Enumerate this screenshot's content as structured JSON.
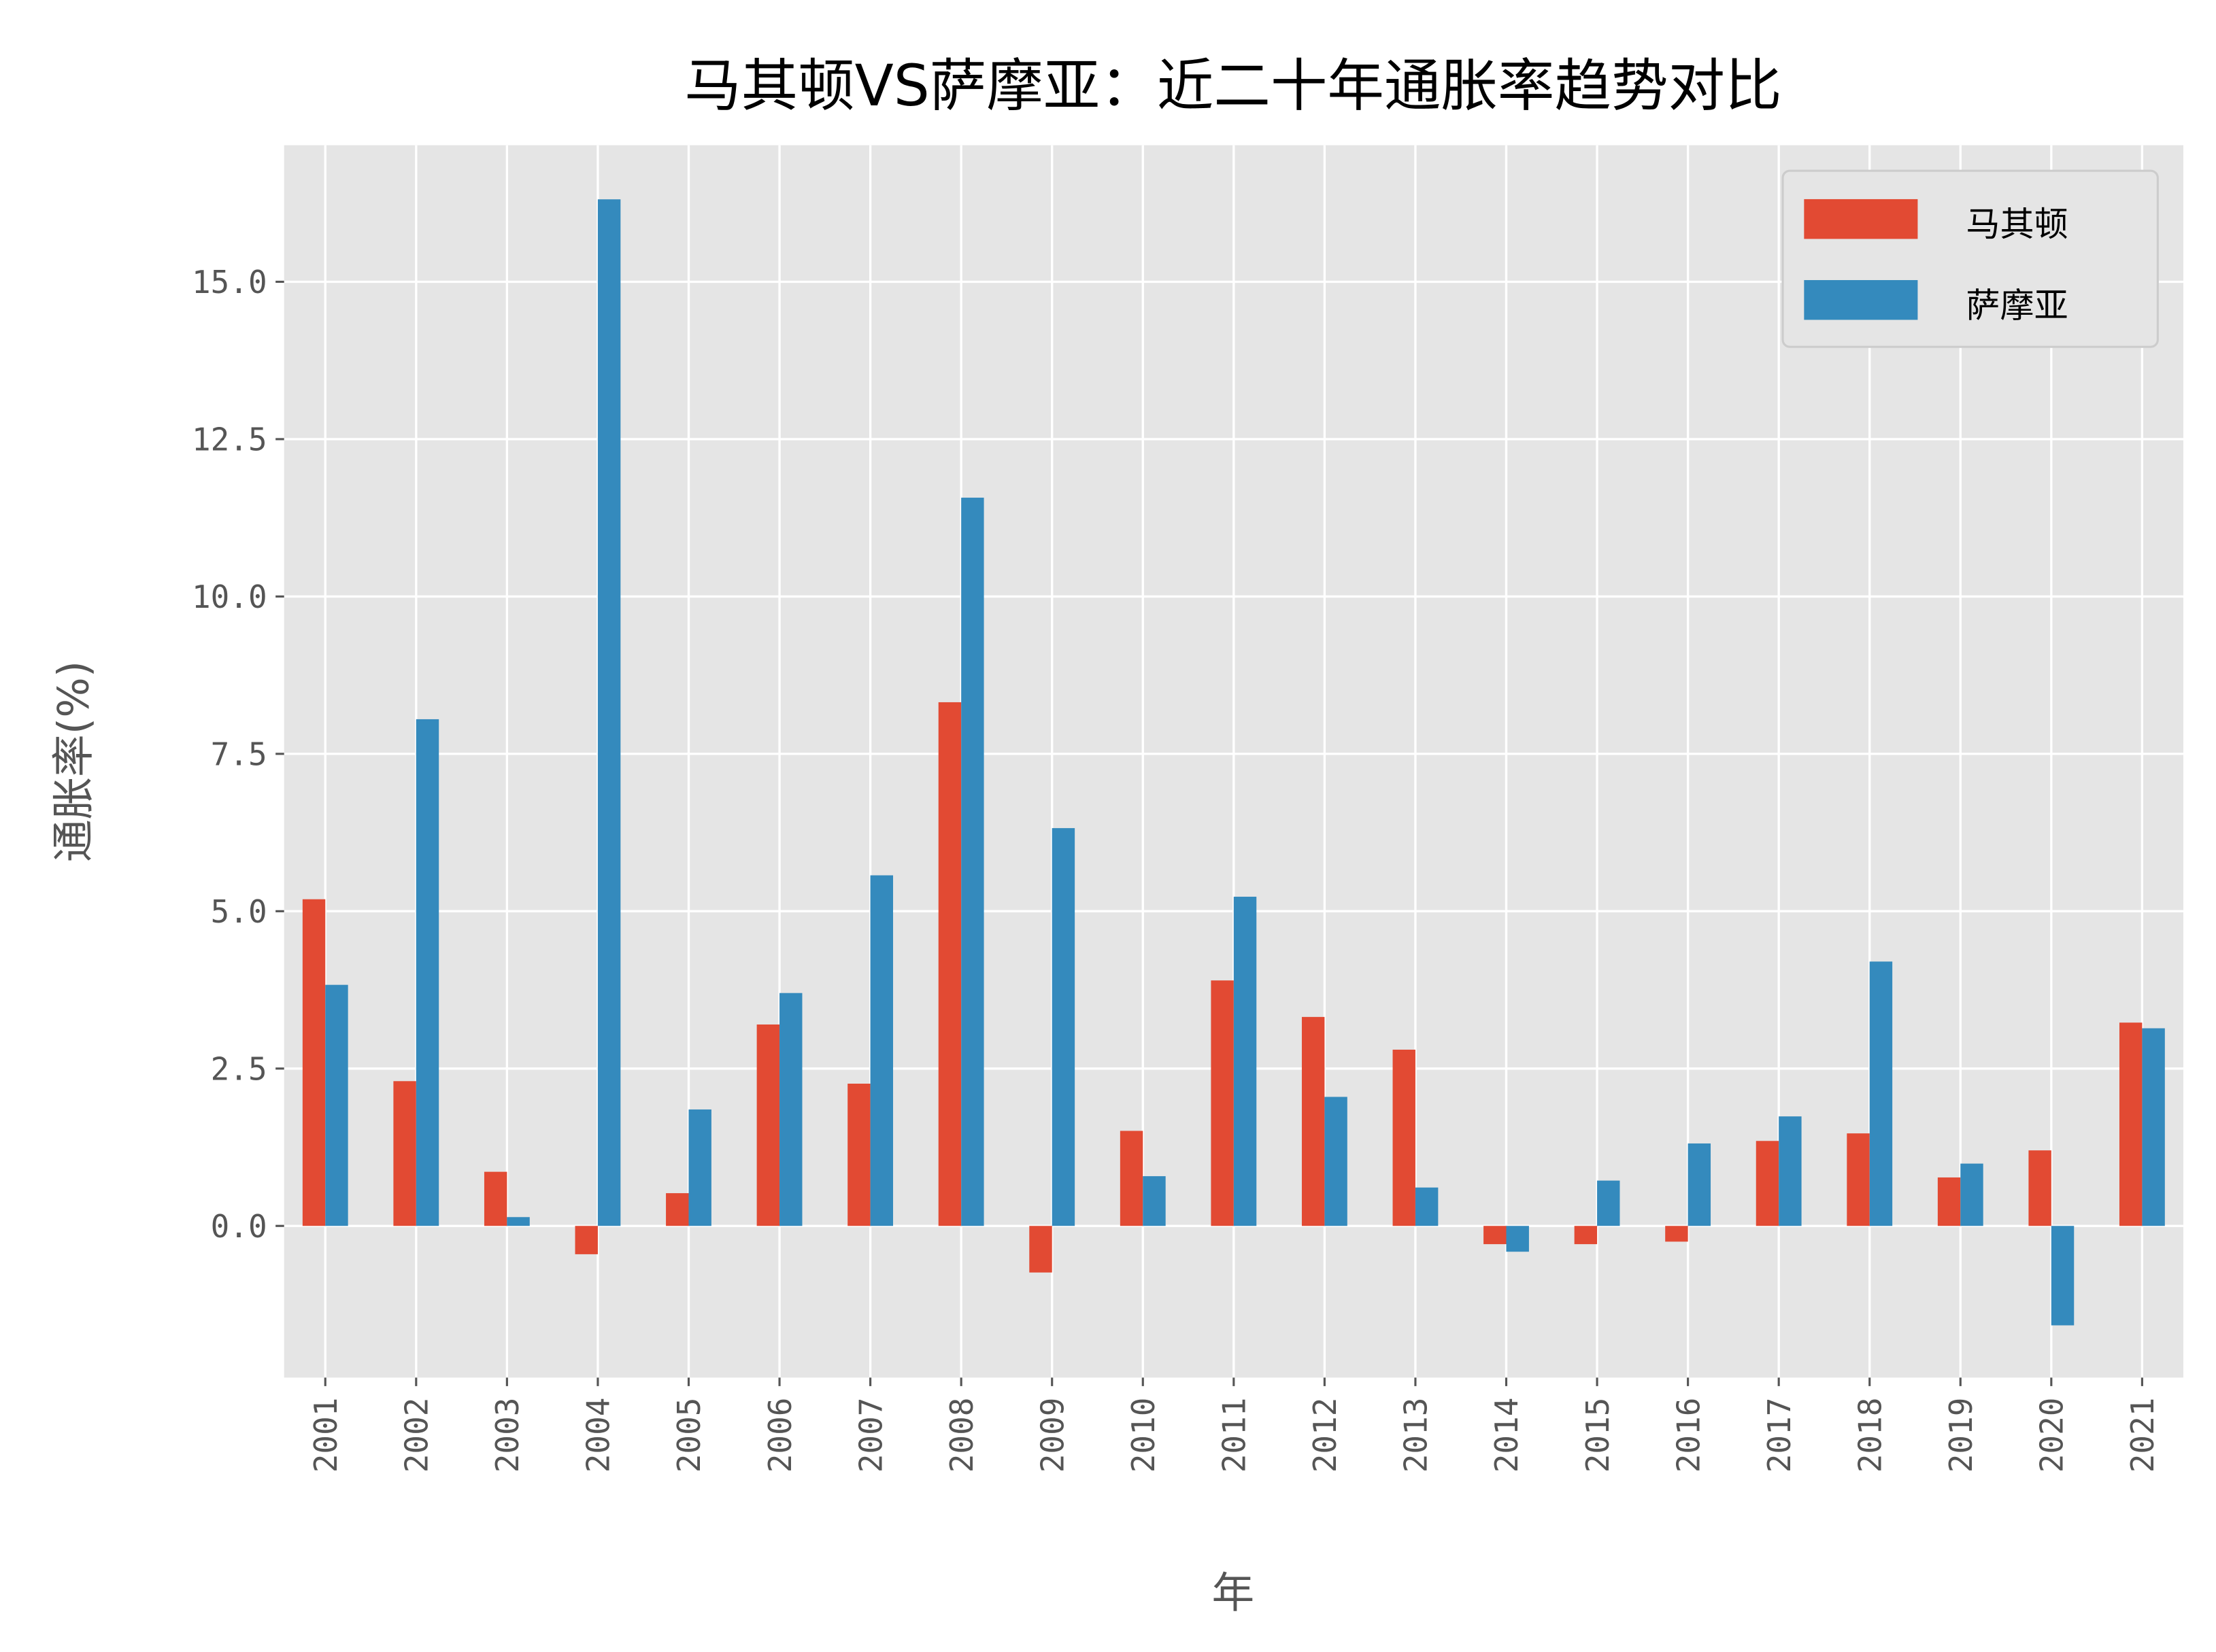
{
  "chart_data": {
    "type": "bar",
    "title": "马其顿VS萨摩亚：近二十年通胀率趋势对比",
    "xlabel": "年",
    "ylabel": "通胀率(%)",
    "categories": [
      "2001",
      "2002",
      "2003",
      "2004",
      "2005",
      "2006",
      "2007",
      "2008",
      "2009",
      "2010",
      "2011",
      "2012",
      "2013",
      "2014",
      "2015",
      "2016",
      "2017",
      "2018",
      "2019",
      "2020",
      "2021"
    ],
    "series": [
      {
        "name": "马其顿",
        "color": "#E24A33",
        "values": [
          5.19,
          2.3,
          0.86,
          -0.45,
          0.52,
          3.2,
          2.26,
          8.32,
          -0.74,
          1.51,
          3.9,
          3.32,
          2.8,
          -0.29,
          -0.29,
          -0.25,
          1.35,
          1.47,
          0.77,
          1.2,
          3.23
        ]
      },
      {
        "name": "萨摩亚",
        "color": "#348ABD",
        "values": [
          3.83,
          8.05,
          0.14,
          16.31,
          1.85,
          3.7,
          5.57,
          11.57,
          6.32,
          0.79,
          5.23,
          2.05,
          0.61,
          -0.41,
          0.72,
          1.31,
          1.74,
          4.2,
          0.99,
          -1.58,
          3.14
        ]
      }
    ],
    "yticks": [
      "0.0",
      "2.5",
      "5.0",
      "7.5",
      "10.0",
      "12.5",
      "15.0"
    ],
    "ytick_values": [
      0,
      2.5,
      5,
      7.5,
      10,
      12.5,
      15
    ],
    "ylim": [
      -2.41,
      17.17
    ],
    "grid": true,
    "legend": "top-right",
    "background": "#E5E5E5"
  }
}
